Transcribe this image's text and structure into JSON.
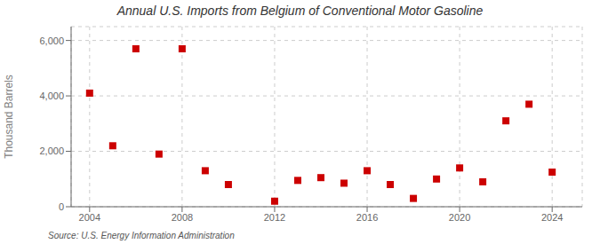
{
  "chart_data": {
    "type": "scatter",
    "title": "Annual U.S. Imports from Belgium of Conventional Motor Gasoline",
    "y_label": "Thousand Barrels",
    "annotation": "Source: U.S. Energy Information Administration",
    "x": [
      2004,
      2005,
      2006,
      2007,
      2008,
      2009,
      2010,
      2012,
      2013,
      2014,
      2015,
      2016,
      2017,
      2018,
      2019,
      2020,
      2021,
      2022,
      2023,
      2024
    ],
    "values": [
      4100,
      2200,
      5700,
      1900,
      5700,
      1300,
      800,
      200,
      950,
      1050,
      850,
      1300,
      800,
      300,
      1000,
      1400,
      900,
      3100,
      3700,
      1250
    ],
    "color": "#cc0000",
    "marker": "square",
    "xlim": [
      2003.2,
      2025.3
    ],
    "xticks": [
      2004,
      2008,
      2012,
      2016,
      2020,
      2024
    ],
    "ylim": [
      0,
      6500
    ],
    "yticks": [
      0,
      {
        "value": 2000,
        "label": "2,000"
      },
      {
        "value": 4000,
        "label": "4,000"
      },
      {
        "value": 6000,
        "label": "6,000"
      }
    ],
    "grid": true
  }
}
